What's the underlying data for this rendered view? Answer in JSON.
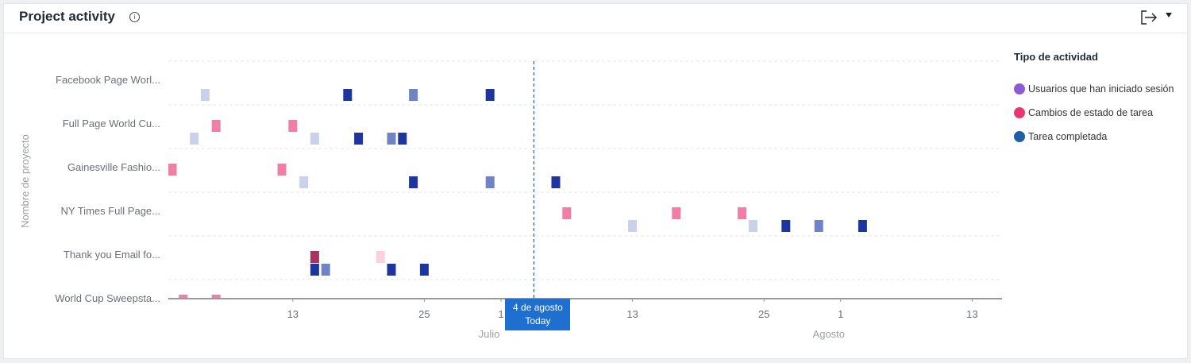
{
  "header": {
    "title": "Project activity",
    "info_icon": "info-icon",
    "export_icon": "export-icon",
    "menu_icon": "caret-down-icon"
  },
  "legend": {
    "title": "Tipo de actividad",
    "items": [
      {
        "label": "Usuarios que han iniciado sesión",
        "color": "#8e5bd6"
      },
      {
        "label": "Cambios de estado de tarea",
        "color": "#e8376f"
      },
      {
        "label": "Tarea completada",
        "color": "#1f5fa8"
      }
    ]
  },
  "today": {
    "line1": "4 de agosto",
    "line2": "Today"
  },
  "chart_data": {
    "type": "scatter",
    "ylabel": "Nombre de proyecto",
    "x_start": "2024-07-02",
    "today": "2024-08-04",
    "x_ticks": [
      {
        "label": "13",
        "date": "2024-07-13"
      },
      {
        "label": "25",
        "date": "2024-07-25"
      },
      {
        "label": "1",
        "date": "2024-08-01"
      },
      {
        "label": "13",
        "date": "2024-08-13"
      },
      {
        "label": "25",
        "date": "2024-08-25"
      },
      {
        "label": "1",
        "date": "2024-09-01"
      },
      {
        "label": "13",
        "date": "2024-09-13"
      }
    ],
    "month_labels": [
      {
        "label": "Julio",
        "date": "2024-08-01"
      },
      {
        "label": "Agosto",
        "date": "2024-09-01"
      }
    ],
    "categories": [
      "Facebook Page Worl...",
      "Full Page World Cu...",
      "Gainesville Fashio...",
      "NY Times Full Page...",
      "Thank you Email fo...",
      "World Cup Sweepsta..."
    ],
    "series": [
      {
        "name": "Cambios de estado de tarea",
        "row_offset": "top",
        "points": [
          {
            "project": 1,
            "date": "2024-07-06",
            "color": "#f27ea5"
          },
          {
            "project": 1,
            "date": "2024-07-13",
            "color": "#f27ea5"
          },
          {
            "project": 2,
            "date": "2024-07-02",
            "color": "#f27ea5"
          },
          {
            "project": 2,
            "date": "2024-07-12",
            "color": "#f27ea5"
          },
          {
            "project": 3,
            "date": "2024-08-07",
            "color": "#f27ea5"
          },
          {
            "project": 3,
            "date": "2024-08-17",
            "color": "#f27ea5"
          },
          {
            "project": 3,
            "date": "2024-08-23",
            "color": "#f27ea5"
          },
          {
            "project": 4,
            "date": "2024-07-15",
            "color": "#a9325e"
          },
          {
            "project": 4,
            "date": "2024-07-21",
            "color": "#fbd1e0"
          },
          {
            "project": 5,
            "date": "2024-07-03",
            "color": "#f27ea5"
          },
          {
            "project": 5,
            "date": "2024-07-06",
            "color": "#f27ea5"
          }
        ]
      },
      {
        "name": "Tarea completada",
        "row_offset": "bottom",
        "points": [
          {
            "project": 0,
            "date": "2024-07-05",
            "color": "#c9d2ea"
          },
          {
            "project": 0,
            "date": "2024-07-18",
            "color": "#1e35a0"
          },
          {
            "project": 0,
            "date": "2024-07-24",
            "color": "#6f83c5"
          },
          {
            "project": 0,
            "date": "2024-07-31",
            "color": "#1e35a0"
          },
          {
            "project": 1,
            "date": "2024-07-04",
            "color": "#c9d2ea"
          },
          {
            "project": 1,
            "date": "2024-07-15",
            "color": "#c9d2ea"
          },
          {
            "project": 1,
            "date": "2024-07-19",
            "color": "#1e35a0"
          },
          {
            "project": 1,
            "date": "2024-07-22",
            "color": "#6f83c5"
          },
          {
            "project": 1,
            "date": "2024-07-23",
            "color": "#1e35a0"
          },
          {
            "project": 2,
            "date": "2024-07-14",
            "color": "#c9d2ea"
          },
          {
            "project": 2,
            "date": "2024-07-24",
            "color": "#1e35a0"
          },
          {
            "project": 2,
            "date": "2024-07-31",
            "color": "#6f83c5"
          },
          {
            "project": 2,
            "date": "2024-08-06",
            "color": "#1e35a0"
          },
          {
            "project": 3,
            "date": "2024-08-13",
            "color": "#c9d2ea"
          },
          {
            "project": 3,
            "date": "2024-08-24",
            "color": "#c9d2ea"
          },
          {
            "project": 3,
            "date": "2024-08-27",
            "color": "#1e35a0"
          },
          {
            "project": 3,
            "date": "2024-08-30",
            "color": "#6f83c5"
          },
          {
            "project": 3,
            "date": "2024-09-03",
            "color": "#1e35a0"
          },
          {
            "project": 4,
            "date": "2024-07-15",
            "color": "#1e35a0"
          },
          {
            "project": 4,
            "date": "2024-07-16",
            "color": "#6f83c5"
          },
          {
            "project": 4,
            "date": "2024-07-22",
            "color": "#1e35a0"
          },
          {
            "project": 4,
            "date": "2024-07-25",
            "color": "#1e35a0"
          }
        ]
      }
    ]
  }
}
